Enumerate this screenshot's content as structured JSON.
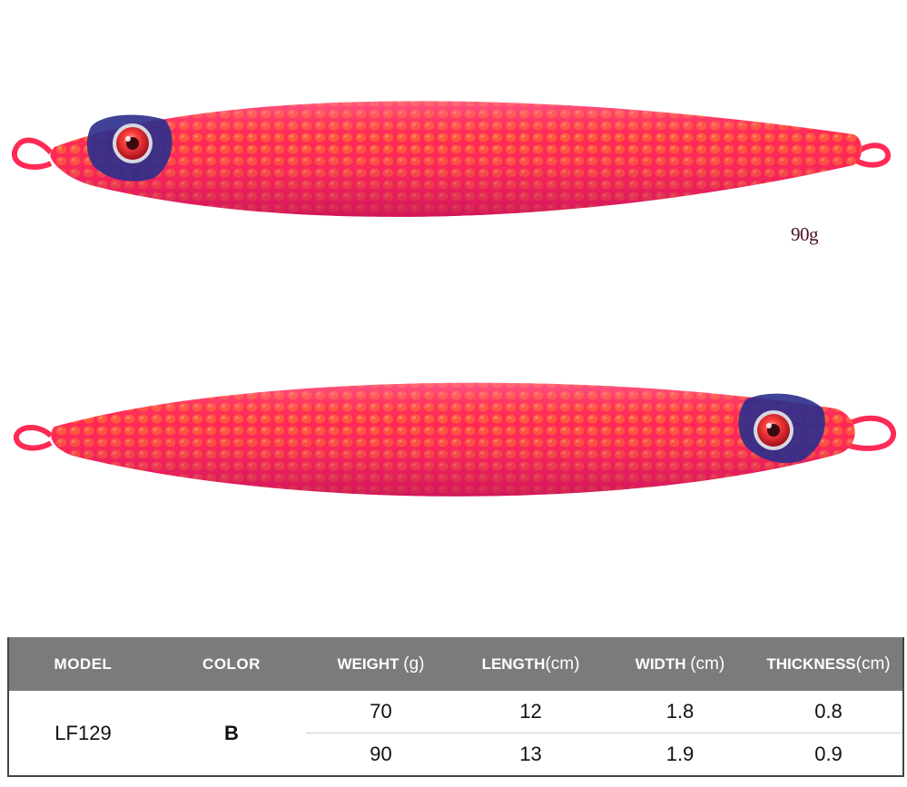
{
  "product": {
    "weight_mark": "90g",
    "colors": {
      "body": "#ff2a55",
      "accent": "#e0209a",
      "eye_patch": "#2a2d8c",
      "eye": "#d61a2e"
    }
  },
  "table": {
    "headers": [
      {
        "label": "MODEL",
        "unit": ""
      },
      {
        "label": "COLOR",
        "unit": ""
      },
      {
        "label": "WEIGHT",
        "unit": "(g)"
      },
      {
        "label": "LENGTH",
        "unit": "(cm)"
      },
      {
        "label": "WIDTH",
        "unit": "(cm)"
      },
      {
        "label": "THICKNESS",
        "unit": "(cm)"
      }
    ],
    "model": "LF129",
    "color": "B",
    "rows": [
      {
        "weight": "70",
        "length": "12",
        "width": "1.8",
        "thickness": "0.8"
      },
      {
        "weight": "90",
        "length": "13",
        "width": "1.9",
        "thickness": "0.9"
      }
    ]
  }
}
